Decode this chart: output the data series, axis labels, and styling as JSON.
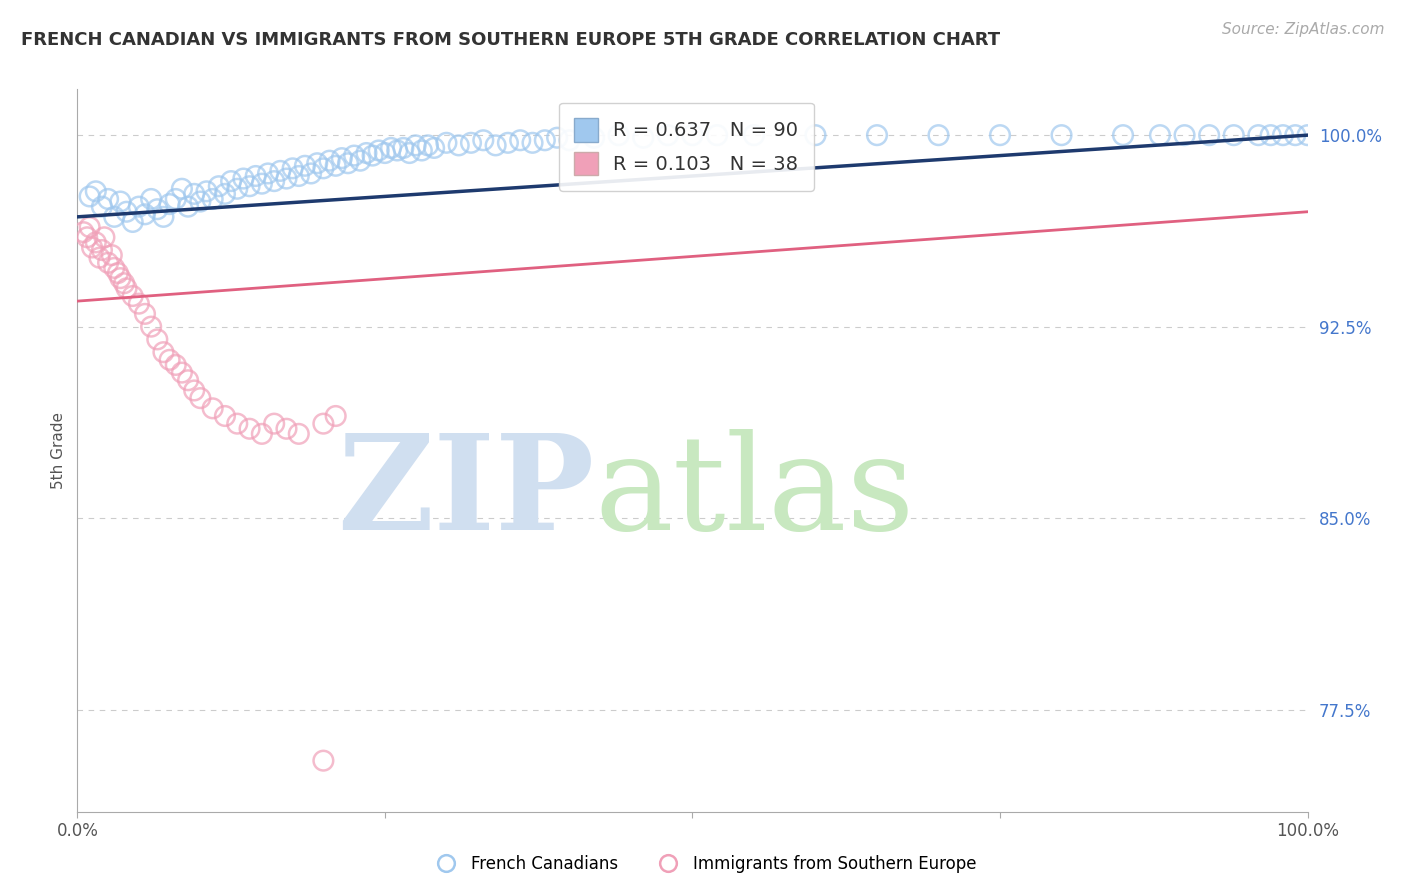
{
  "title": "FRENCH CANADIAN VS IMMIGRANTS FROM SOUTHERN EUROPE 5TH GRADE CORRELATION CHART",
  "source": "Source: ZipAtlas.com",
  "ylabel": "5th Grade",
  "xlim": [
    0.0,
    1.0
  ],
  "ylim": [
    0.735,
    1.018
  ],
  "ytick_vals_right": [
    0.775,
    0.85,
    0.925,
    1.0
  ],
  "ytick_labels_right": [
    "77.5%",
    "85.0%",
    "92.5%",
    "100.0%"
  ],
  "R_blue": 0.637,
  "N_blue": 90,
  "R_pink": 0.103,
  "N_pink": 38,
  "blue_color": "#A0C8EE",
  "pink_color": "#F0A0B8",
  "blue_line_color": "#1E3A6E",
  "pink_line_color": "#E06080",
  "legend_label_blue": "French Canadians",
  "legend_label_pink": "Immigrants from Southern Europe",
  "watermark_zip_color": "#D0DFF0",
  "watermark_atlas_color": "#C8E8C0",
  "grid_color": "#CCCCCC",
  "title_color": "#333333",
  "blue_scatter_x": [
    0.01,
    0.015,
    0.02,
    0.025,
    0.03,
    0.035,
    0.04,
    0.045,
    0.05,
    0.055,
    0.06,
    0.065,
    0.07,
    0.075,
    0.08,
    0.085,
    0.09,
    0.095,
    0.1,
    0.105,
    0.11,
    0.115,
    0.12,
    0.125,
    0.13,
    0.135,
    0.14,
    0.145,
    0.15,
    0.155,
    0.16,
    0.165,
    0.17,
    0.175,
    0.18,
    0.185,
    0.19,
    0.195,
    0.2,
    0.205,
    0.21,
    0.215,
    0.22,
    0.225,
    0.23,
    0.235,
    0.24,
    0.245,
    0.25,
    0.255,
    0.26,
    0.265,
    0.27,
    0.275,
    0.28,
    0.285,
    0.29,
    0.3,
    0.31,
    0.32,
    0.33,
    0.34,
    0.35,
    0.36,
    0.37,
    0.38,
    0.39,
    0.4,
    0.42,
    0.44,
    0.46,
    0.48,
    0.5,
    0.52,
    0.55,
    0.6,
    0.65,
    0.7,
    0.75,
    0.8,
    0.85,
    0.88,
    0.9,
    0.92,
    0.94,
    0.96,
    0.97,
    0.98,
    0.99,
    1.0
  ],
  "blue_scatter_y": [
    0.976,
    0.978,
    0.972,
    0.975,
    0.968,
    0.974,
    0.97,
    0.966,
    0.972,
    0.969,
    0.975,
    0.971,
    0.968,
    0.973,
    0.975,
    0.979,
    0.972,
    0.977,
    0.974,
    0.978,
    0.975,
    0.98,
    0.977,
    0.982,
    0.979,
    0.983,
    0.98,
    0.984,
    0.981,
    0.985,
    0.982,
    0.986,
    0.983,
    0.987,
    0.984,
    0.988,
    0.985,
    0.989,
    0.987,
    0.99,
    0.988,
    0.991,
    0.989,
    0.992,
    0.99,
    0.993,
    0.992,
    0.994,
    0.993,
    0.995,
    0.994,
    0.995,
    0.993,
    0.996,
    0.994,
    0.996,
    0.995,
    0.997,
    0.996,
    0.997,
    0.998,
    0.996,
    0.997,
    0.998,
    0.997,
    0.998,
    0.999,
    0.998,
    0.999,
    1.0,
    0.999,
    1.0,
    1.0,
    1.0,
    1.0,
    1.0,
    1.0,
    1.0,
    1.0,
    1.0,
    1.0,
    1.0,
    1.0,
    1.0,
    1.0,
    1.0,
    1.0,
    1.0,
    1.0,
    1.0
  ],
  "pink_scatter_x": [
    0.005,
    0.008,
    0.01,
    0.012,
    0.015,
    0.018,
    0.02,
    0.022,
    0.025,
    0.028,
    0.03,
    0.033,
    0.035,
    0.038,
    0.04,
    0.045,
    0.05,
    0.055,
    0.06,
    0.065,
    0.07,
    0.075,
    0.08,
    0.085,
    0.09,
    0.095,
    0.1,
    0.11,
    0.12,
    0.13,
    0.14,
    0.15,
    0.16,
    0.17,
    0.18,
    0.2,
    0.21,
    0.2
  ],
  "pink_scatter_y": [
    0.962,
    0.96,
    0.964,
    0.956,
    0.958,
    0.952,
    0.955,
    0.96,
    0.95,
    0.953,
    0.948,
    0.946,
    0.944,
    0.942,
    0.94,
    0.937,
    0.934,
    0.93,
    0.925,
    0.92,
    0.915,
    0.912,
    0.91,
    0.907,
    0.904,
    0.9,
    0.897,
    0.893,
    0.89,
    0.887,
    0.885,
    0.883,
    0.887,
    0.885,
    0.883,
    0.887,
    0.89,
    0.755
  ],
  "blue_trend_x": [
    0.0,
    1.0
  ],
  "blue_trend_y": [
    0.968,
    1.0
  ],
  "pink_trend_x": [
    0.0,
    1.0
  ],
  "pink_trend_y": [
    0.935,
    0.97
  ]
}
